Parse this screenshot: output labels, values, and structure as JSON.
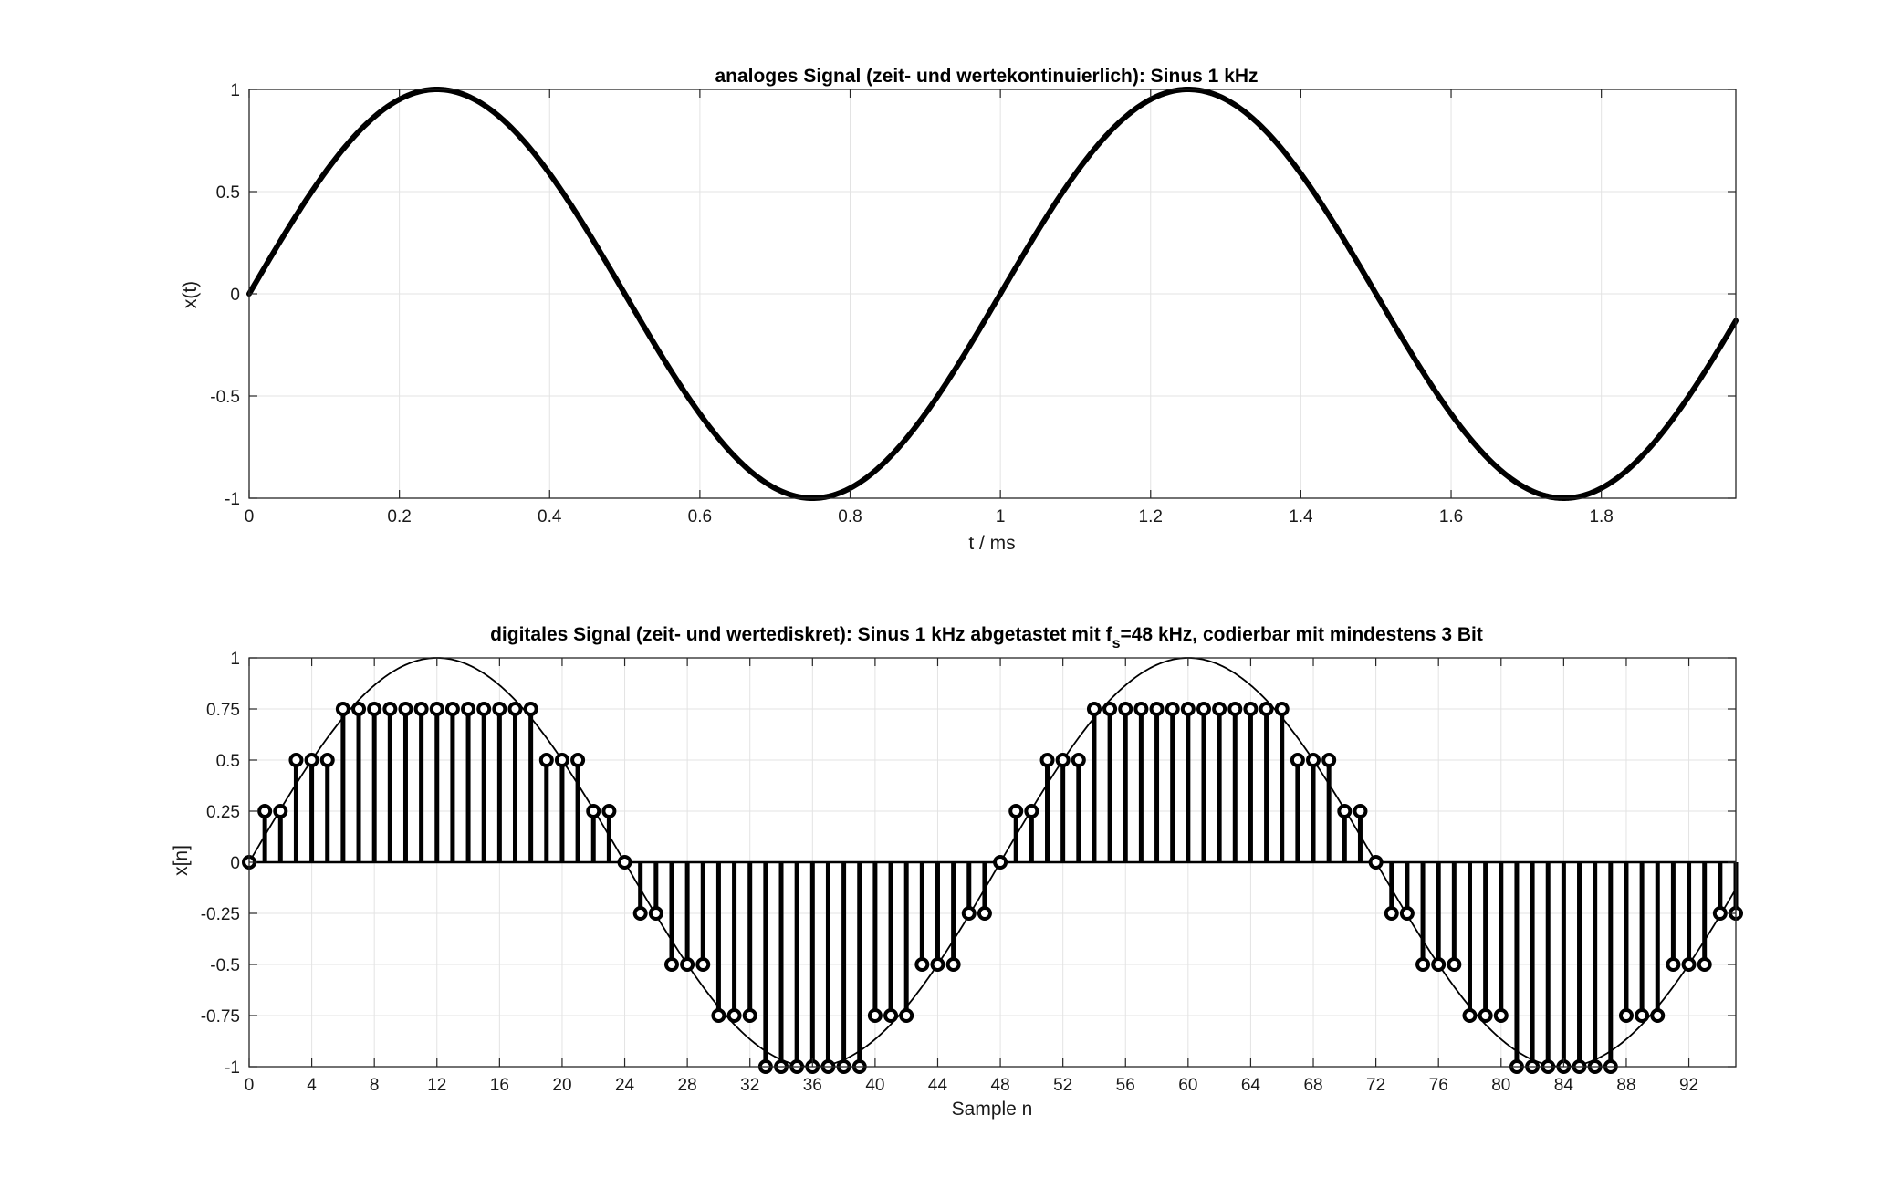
{
  "chart_data": [
    {
      "type": "line",
      "title": "analoges Signal (zeit- und wertekontinuierlich): Sinus 1 kHz",
      "xlabel": "t / ms",
      "ylabel": "x(t)",
      "xlim": [
        0,
        1.979
      ],
      "ylim": [
        -1,
        1
      ],
      "grid": true,
      "x_ticks": [
        0,
        0.2,
        0.4,
        0.6,
        0.8,
        1,
        1.2,
        1.4,
        1.6,
        1.8
      ],
      "x_tick_labels": [
        "0",
        "0.2",
        "0.4",
        "0.6",
        "0.8",
        "1",
        "1.2",
        "1.4",
        "1.6",
        "1.8"
      ],
      "y_ticks": [
        1,
        0.5,
        0,
        -0.5,
        -1
      ],
      "y_tick_labels": [
        "1",
        "0.5",
        "0",
        "-0.5",
        "-1"
      ],
      "series": [
        {
          "function": "sin(2*pi*f*t)",
          "frequency_khz": 1,
          "t_start": 0,
          "t_end": 1.979,
          "color": "#000000"
        }
      ]
    },
    {
      "type": "stem",
      "title_main": "digitales Signal (zeit- und wertediskret): Sinus 1 kHz abgetastet mit f",
      "title_sub": "s",
      "title_rest": "=48 kHz, codierbar mit mindestens 3 Bit",
      "xlabel": "Sample n",
      "ylabel": "x[n]",
      "xlim": [
        0,
        95
      ],
      "ylim": [
        -1,
        1
      ],
      "grid": true,
      "x_ticks": [
        0,
        4,
        8,
        12,
        16,
        20,
        24,
        28,
        32,
        36,
        40,
        44,
        48,
        52,
        56,
        60,
        64,
        68,
        72,
        76,
        80,
        84,
        88,
        92
      ],
      "x_tick_labels": [
        "0",
        "4",
        "8",
        "12",
        "16",
        "20",
        "24",
        "28",
        "32",
        "36",
        "40",
        "44",
        "48",
        "52",
        "56",
        "60",
        "64",
        "68",
        "72",
        "76",
        "80",
        "84",
        "88",
        "92"
      ],
      "y_ticks": [
        1,
        0.75,
        0.5,
        0.25,
        0,
        -0.25,
        -0.5,
        -0.75,
        -1
      ],
      "y_tick_labels": [
        "1",
        "0.75",
        "0.5",
        "0.25",
        "0",
        "-0.25",
        "-0.5",
        "-0.75",
        "-1"
      ],
      "samples": [
        0,
        0.25,
        0.25,
        0.5,
        0.5,
        0.5,
        0.75,
        0.75,
        0.75,
        0.75,
        0.75,
        0.75,
        0.75,
        0.75,
        0.75,
        0.75,
        0.75,
        0.75,
        0.75,
        0.5,
        0.5,
        0.5,
        0.25,
        0.25,
        0,
        -0.25,
        -0.25,
        -0.5,
        -0.5,
        -0.5,
        -0.75,
        -0.75,
        -0.75,
        -1,
        -1,
        -1,
        -1,
        -1,
        -1,
        -1,
        -0.75,
        -0.75,
        -0.75,
        -0.5,
        -0.5,
        -0.5,
        -0.25,
        -0.25,
        0,
        0.25,
        0.25,
        0.5,
        0.5,
        0.5,
        0.75,
        0.75,
        0.75,
        0.75,
        0.75,
        0.75,
        0.75,
        0.75,
        0.75,
        0.75,
        0.75,
        0.75,
        0.75,
        0.5,
        0.5,
        0.5,
        0.25,
        0.25,
        0,
        -0.25,
        -0.25,
        -0.5,
        -0.5,
        -0.5,
        -0.75,
        -0.75,
        -0.75,
        -1,
        -1,
        -1,
        -1,
        -1,
        -1,
        -1,
        -0.75,
        -0.75,
        -0.75,
        -0.5,
        -0.5,
        -0.5,
        -0.25,
        -0.25
      ],
      "reference_curve": {
        "function": "sin(2*pi*n/48)",
        "color": "#000000"
      }
    }
  ]
}
